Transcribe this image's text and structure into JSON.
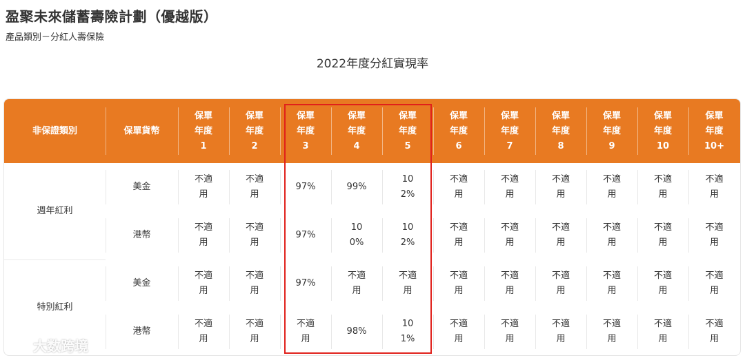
{
  "header": {
    "title": "盈聚未來儲蓄壽險計劃（優越版）",
    "subtitle": "產品類別－分紅人壽保險",
    "section_title": "2022年度分紅實現率"
  },
  "table": {
    "col_category": "非保證類別",
    "col_currency": "保單貨幣",
    "year_prefix": "保單年度",
    "year_line1": "保單",
    "year_line2": "年度",
    "years": [
      "1",
      "2",
      "3",
      "4",
      "5",
      "6",
      "7",
      "8",
      "9",
      "10",
      "10+"
    ],
    "groups": [
      {
        "category": "週年紅利",
        "rows": [
          {
            "currency": "美金",
            "values": [
              "不適用",
              "不適用",
              "97%",
              "99%",
              "102%",
              "不適用",
              "不適用",
              "不適用",
              "不適用",
              "不適用",
              "不適用"
            ]
          },
          {
            "currency": "港幣",
            "values": [
              "不適用",
              "不適用",
              "97%",
              "100%",
              "102%",
              "不適用",
              "不適用",
              "不適用",
              "不適用",
              "不適用",
              "不適用"
            ]
          }
        ]
      },
      {
        "category": "特別紅利",
        "rows": [
          {
            "currency": "美金",
            "values": [
              "不適用",
              "不適用",
              "97%",
              "不適用",
              "不適用",
              "不適用",
              "不適用",
              "不適用",
              "不適用",
              "不適用",
              "不適用"
            ]
          },
          {
            "currency": "港幣",
            "values": [
              "不適用",
              "不適用",
              "不適用",
              "98%",
              "101%",
              "不適用",
              "不適用",
              "不適用",
              "不適用",
              "不適用",
              "不適用"
            ]
          }
        ]
      }
    ]
  },
  "watermark": {
    "text": "大数跨境",
    "icon": "chat-bubble-logo"
  },
  "colors": {
    "header_bg": "#e87a22",
    "highlight": "#e0201b"
  }
}
